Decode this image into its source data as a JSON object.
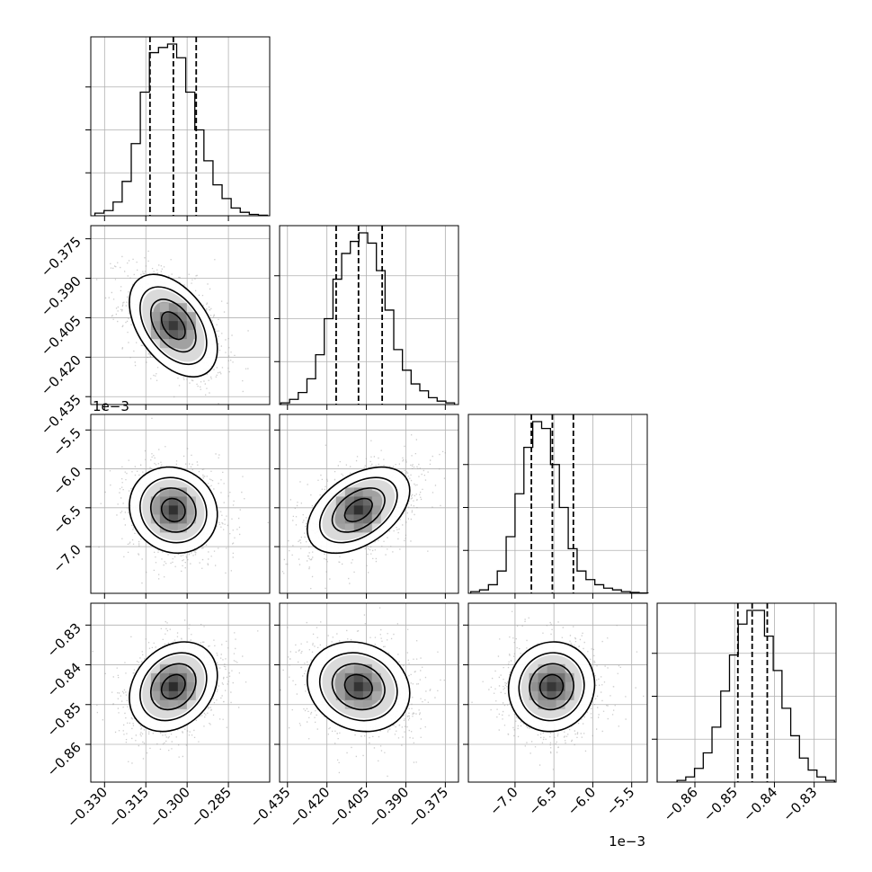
{
  "chart_data": {
    "type": "corner",
    "grid": true,
    "parameters": [
      {
        "index": 0,
        "range": [
          -0.335,
          -0.27
        ],
        "ticks": [
          -0.33,
          -0.315,
          -0.3,
          -0.285
        ],
        "tick_labels": [
          "−0.330",
          "−0.315",
          "−0.300",
          "−0.285"
        ],
        "offset_text": "",
        "quantiles": [
          -0.3135,
          -0.305,
          -0.2967
        ],
        "hist": {
          "bin_start": -0.3335,
          "bin_width": 0.0033,
          "counts": [
            0.015,
            0.03,
            0.08,
            0.2,
            0.42,
            0.72,
            0.95,
            0.98,
            1.0,
            0.92,
            0.72,
            0.5,
            0.32,
            0.18,
            0.1,
            0.045,
            0.02,
            0.008,
            0.003
          ]
        }
      },
      {
        "index": 1,
        "range": [
          -0.438,
          -0.37
        ],
        "ticks": [
          -0.435,
          -0.42,
          -0.405,
          -0.39,
          -0.375
        ],
        "tick_labels": [
          "−0.435",
          "−0.420",
          "−0.405",
          "−0.390",
          "−0.375"
        ],
        "offset_text": "",
        "quantiles": [
          -0.4165,
          -0.408,
          -0.399
        ],
        "hist": {
          "bin_start": -0.4375,
          "bin_width": 0.0033,
          "counts": [
            0.01,
            0.03,
            0.07,
            0.15,
            0.29,
            0.5,
            0.73,
            0.88,
            0.95,
            1.0,
            0.94,
            0.78,
            0.55,
            0.32,
            0.2,
            0.12,
            0.08,
            0.04,
            0.02,
            0.01
          ]
        }
      },
      {
        "index": 2,
        "range": [
          -7.6,
          -5.3
        ],
        "ticks": [
          -7.0,
          -6.5,
          -6.0,
          -5.5
        ],
        "tick_labels": [
          "−7.0",
          "−6.5",
          "−6.0",
          "−5.5"
        ],
        "offset_text": "1e−3",
        "quantiles": [
          -6.79,
          -6.52,
          -6.25
        ],
        "hist": {
          "bin_start": -7.57,
          "bin_width": 0.114,
          "counts": [
            0.01,
            0.02,
            0.05,
            0.13,
            0.33,
            0.58,
            0.85,
            1.0,
            0.96,
            0.75,
            0.5,
            0.26,
            0.13,
            0.08,
            0.05,
            0.03,
            0.02,
            0.01,
            0.005,
            0.002
          ]
        }
      },
      {
        "index": 3,
        "range": [
          -0.8695,
          -0.8245
        ],
        "ticks": [
          -0.86,
          -0.85,
          -0.84,
          -0.83
        ],
        "tick_labels": [
          "−0.86",
          "−0.85",
          "−0.84",
          "−0.83"
        ],
        "offset_text": "",
        "quantiles": [
          -0.8492,
          -0.8456,
          -0.8418
        ],
        "hist": {
          "bin_start": -0.8645,
          "bin_width": 0.0022,
          "counts": [
            0.01,
            0.03,
            0.08,
            0.17,
            0.32,
            0.53,
            0.74,
            0.92,
            1.0,
            1.0,
            0.85,
            0.65,
            0.43,
            0.27,
            0.14,
            0.07,
            0.03,
            0.01
          ]
        }
      }
    ],
    "pairs": [
      {
        "x": 0,
        "y": 1,
        "mean": [
          -0.305,
          -0.408
        ],
        "sd": [
          0.0078,
          0.0095
        ],
        "rho": -0.45
      },
      {
        "x": 0,
        "y": 2,
        "mean": [
          -0.305,
          -6.53
        ],
        "sd": [
          0.0078,
          0.27
        ],
        "rho": -0.1
      },
      {
        "x": 1,
        "y": 2,
        "mean": [
          -0.408,
          -6.53
        ],
        "sd": [
          0.0095,
          0.27
        ],
        "rho": 0.45
      },
      {
        "x": 0,
        "y": 3,
        "mean": [
          -0.305,
          -0.8455
        ],
        "sd": [
          0.0078,
          0.0055
        ],
        "rho": 0.25
      },
      {
        "x": 1,
        "y": 3,
        "mean": [
          -0.408,
          -0.8455
        ],
        "sd": [
          0.0095,
          0.0055
        ],
        "rho": -0.15
      },
      {
        "x": 2,
        "y": 3,
        "mean": [
          -6.53,
          -0.8455
        ],
        "sd": [
          0.27,
          0.0055
        ],
        "rho": 0.05
      }
    ]
  }
}
